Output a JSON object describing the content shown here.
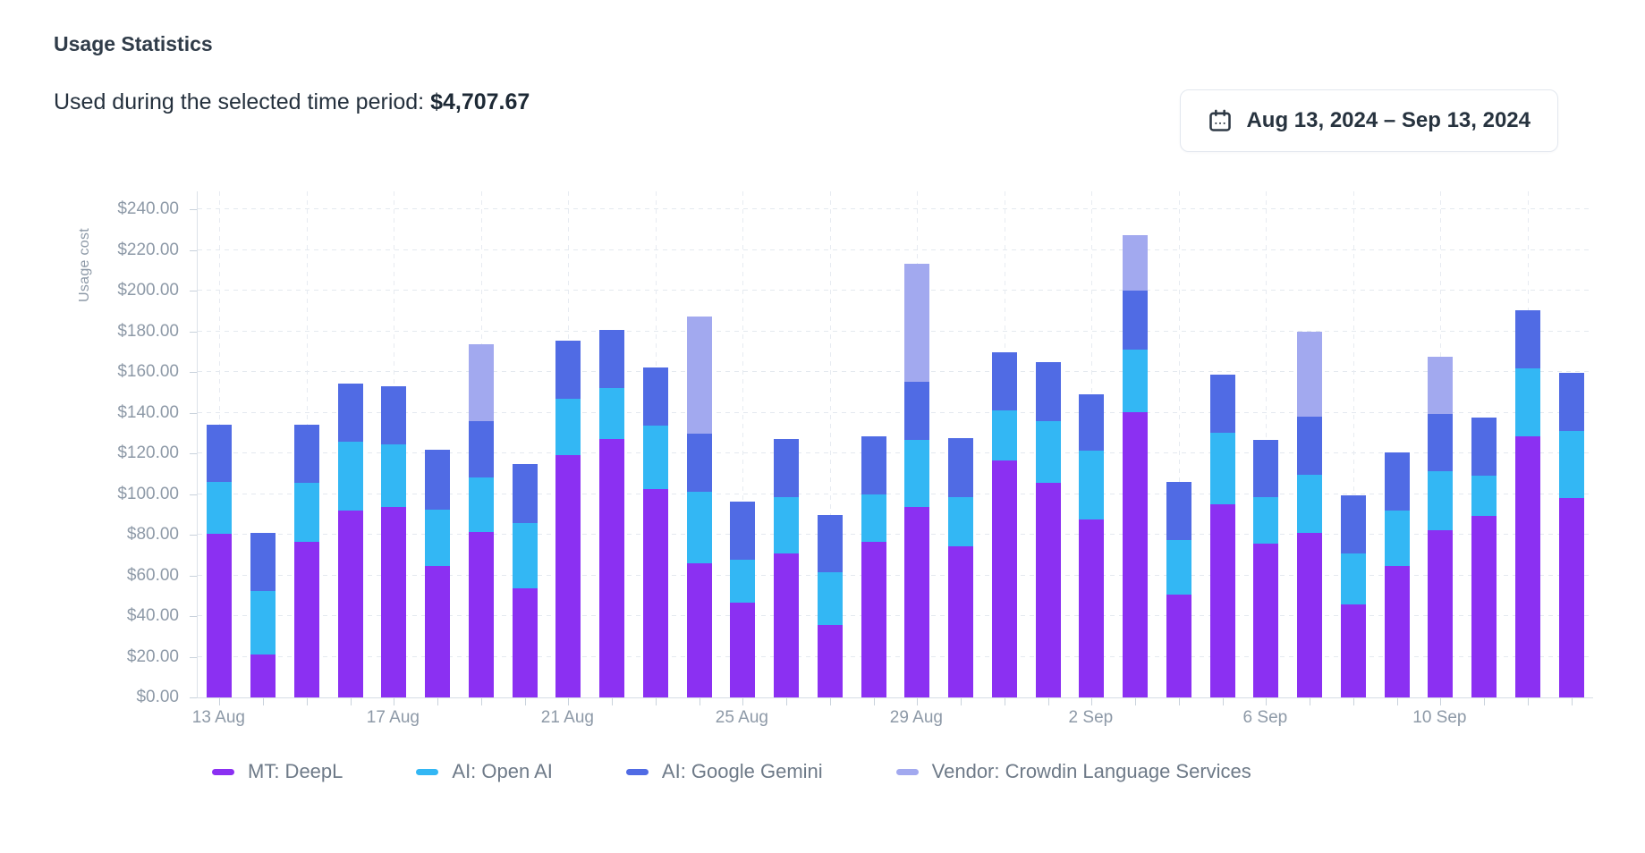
{
  "header": {
    "title": "Usage Statistics",
    "usage_label": "Used during the selected time period:",
    "usage_amount": "$4,707.67"
  },
  "date_range": {
    "label": "Aug 13, 2024 – Sep 13, 2024",
    "icon": "calendar-icon"
  },
  "colors": {
    "deepl": "#8B30F2",
    "openai": "#33B7F4",
    "gemini": "#506BE4",
    "vendor": "#A2A9EF",
    "grid": "#e4e9ef",
    "axis_text": "#8d99a7"
  },
  "chart_data": {
    "type": "bar",
    "stacked": true,
    "ylabel": "Usage cost",
    "ylim": [
      0,
      240
    ],
    "y_tick_step": 20,
    "y_tick_prefix": "$",
    "grid": true,
    "legend_position": "bottom",
    "x_tick_label_every": 4,
    "x_tick_labels_shown": [
      "13 Aug",
      "17 Aug",
      "21 Aug",
      "25 Aug",
      "29 Aug",
      "2 Sep",
      "6 Sep",
      "10 Sep"
    ],
    "categories": [
      "13 Aug",
      "14 Aug",
      "15 Aug",
      "16 Aug",
      "17 Aug",
      "18 Aug",
      "19 Aug",
      "20 Aug",
      "21 Aug",
      "22 Aug",
      "23 Aug",
      "24 Aug",
      "25 Aug",
      "26 Aug",
      "27 Aug",
      "28 Aug",
      "29 Aug",
      "30 Aug",
      "31 Aug",
      "1 Sep",
      "2 Sep",
      "3 Sep",
      "4 Sep",
      "5 Sep",
      "6 Sep",
      "7 Sep",
      "8 Sep",
      "9 Sep",
      "10 Sep",
      "11 Sep",
      "12 Sep",
      "13 Sep"
    ],
    "series": [
      {
        "name": "MT: DeepL",
        "key": "deepl",
        "color": "#8B30F2",
        "values": [
          80.5,
          21.1,
          76.3,
          91.7,
          93.5,
          64.6,
          81.2,
          53.6,
          119.1,
          127.2,
          102.3,
          66.1,
          46.6,
          70.9,
          35.7,
          76.3,
          93.5,
          74.4,
          116.6,
          105.6,
          87.6,
          140.1,
          50.4,
          94.9,
          75.6,
          81.0,
          45.6,
          64.6,
          82.2,
          89.1,
          128.3,
          97.9
        ]
      },
      {
        "name": "AI: Open AI",
        "key": "openai",
        "color": "#33B7F4",
        "values": [
          25.5,
          31.3,
          29.3,
          34.0,
          30.7,
          27.8,
          26.9,
          32.3,
          27.8,
          24.9,
          31.2,
          35.1,
          20.9,
          27.4,
          26.0,
          23.5,
          33.1,
          24.2,
          24.6,
          30.4,
          33.7,
          31.0,
          26.9,
          35.2,
          22.7,
          28.6,
          25.3,
          27.1,
          28.9,
          19.9,
          33.4,
          33.1
        ]
      },
      {
        "name": "AI: Google Gemini",
        "key": "gemini",
        "color": "#506BE4",
        "values": [
          28.3,
          28.3,
          28.3,
          28.6,
          28.9,
          29.3,
          27.9,
          28.8,
          28.6,
          28.7,
          28.5,
          28.6,
          28.6,
          28.6,
          28.1,
          28.5,
          28.4,
          29.0,
          28.4,
          28.7,
          27.8,
          28.7,
          28.8,
          28.7,
          28.3,
          28.3,
          28.4,
          28.6,
          28.2,
          28.4,
          28.5,
          28.4
        ]
      },
      {
        "name": "Vendor: Crowdin Language Services",
        "key": "vendor",
        "color": "#A2A9EF",
        "values": [
          0,
          0,
          0,
          0,
          0,
          0,
          37.5,
          0,
          0,
          0,
          0,
          57.6,
          0,
          0,
          0,
          0,
          58.0,
          0,
          0,
          0,
          0,
          27.4,
          0,
          0,
          0,
          41.7,
          0,
          0,
          28.3,
          0,
          0,
          0
        ]
      }
    ],
    "total": "$4,707.67"
  }
}
